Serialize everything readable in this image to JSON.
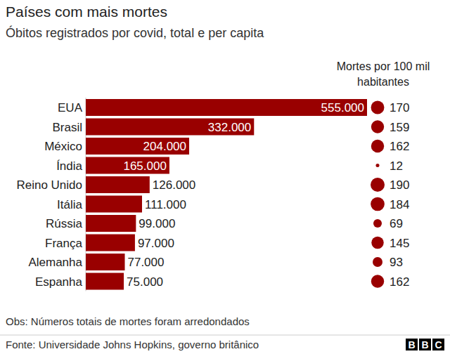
{
  "chart_data": {
    "type": "bar",
    "title": "Países com mais mortes",
    "subtitle": "Óbitos registrados por covid, total e per capita",
    "orientation": "horizontal",
    "categories": [
      "EUA",
      "Brasil",
      "México",
      "Índia",
      "Reino Unido",
      "Itália",
      "Rússia",
      "França",
      "Alemanha",
      "Espanha"
    ],
    "values": [
      555000,
      332000,
      204000,
      165000,
      126000,
      111000,
      99000,
      97000,
      77000,
      75000
    ],
    "value_labels": [
      "555.000",
      "332.000",
      "204.000",
      "165.000",
      "126.000",
      "111.000",
      "99.000",
      "97.000",
      "77.000",
      "75.000"
    ],
    "data_labels": true,
    "color": "#990000",
    "xlim": [
      0,
      555000
    ],
    "tick_labels": "y",
    "per_capita_label": "Mortes por 100 mil habitantes",
    "per_capita": [
      170,
      159,
      162,
      12,
      190,
      184,
      69,
      145,
      93,
      162
    ],
    "note": "Obs: Números totais de mortes foram arredondados",
    "source": "Fonte: Universidade Johns Hopkins, governo britânico",
    "logo": "BBC"
  }
}
